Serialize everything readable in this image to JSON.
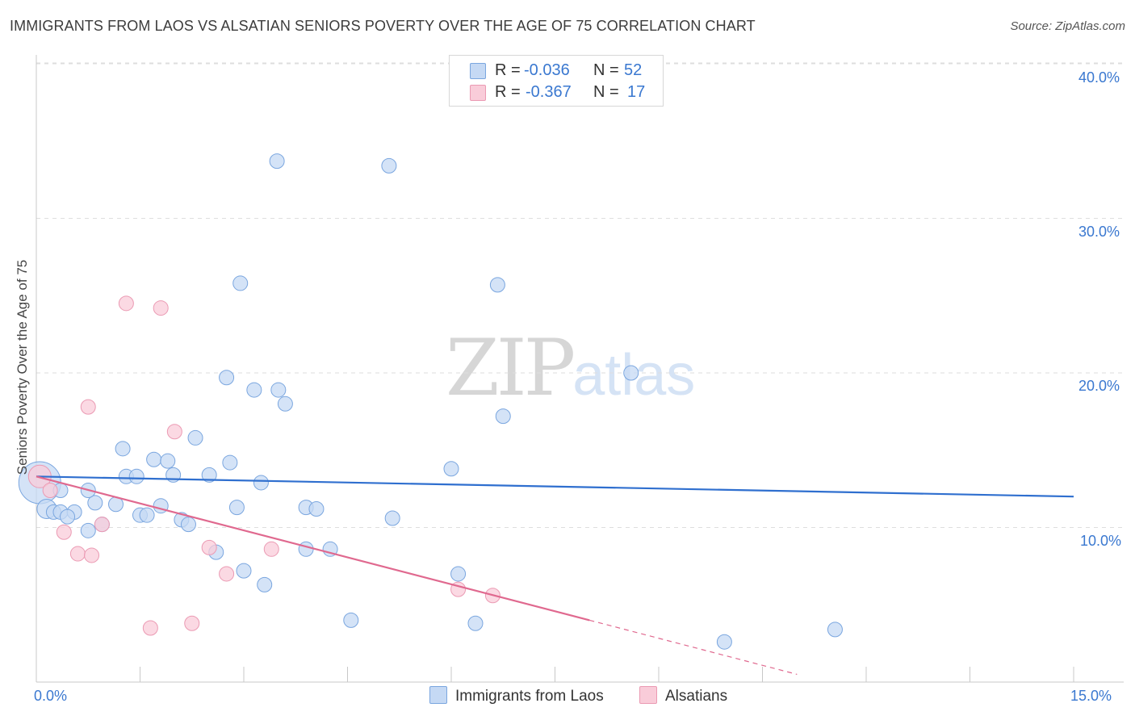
{
  "title": "IMMIGRANTS FROM LAOS VS ALSATIAN SENIORS POVERTY OVER THE AGE OF 75 CORRELATION CHART",
  "source": "Source: ZipAtlas.com",
  "watermark": {
    "zip": "ZIP",
    "atlas": "atlas"
  },
  "legend": {
    "series1": {
      "r_label": "R =",
      "r_value": "-0.036",
      "n_label": "N =",
      "n_value": "52"
    },
    "series2": {
      "r_label": "R =",
      "r_value": "-0.367",
      "n_label": "N =",
      "n_value": "17"
    }
  },
  "colors": {
    "blue_fill": "#c5d9f4",
    "blue_stroke": "#7aa6df",
    "blue_line": "#2f6fcf",
    "pink_fill": "#f9ccd9",
    "pink_stroke": "#eb9ab3",
    "pink_line": "#e0698f",
    "grid": "#dedede",
    "tick_text": "#3a78d0"
  },
  "chart_data": {
    "type": "scatter",
    "title": "IMMIGRANTS FROM LAOS VS ALSATIAN SENIORS POVERTY OVER THE AGE OF 75 CORRELATION CHART",
    "xlabel": "",
    "ylabel": "Seniors Poverty Over the Age of 75",
    "xlim": [
      0,
      15
    ],
    "ylim": [
      0,
      40
    ],
    "x_tick_labels": [
      "0.0%",
      "15.0%"
    ],
    "y_ticks": [
      10,
      20,
      30,
      40
    ],
    "y_tick_labels": [
      "10.0%",
      "20.0%",
      "30.0%",
      "40.0%"
    ],
    "grid": true,
    "series": [
      {
        "name": "Immigrants from Laos",
        "color": "#7aa6df",
        "trend": {
          "x0": 0,
          "y0": 13.3,
          "x1": 15,
          "y1": 12.0,
          "dashed_to": null
        },
        "points": [
          [
            0.05,
            12.9,
            26
          ],
          [
            0.15,
            11.2,
            12
          ],
          [
            0.25,
            11.0,
            9
          ],
          [
            0.35,
            11.0,
            9
          ],
          [
            0.55,
            11.0,
            9
          ],
          [
            0.45,
            10.7,
            9
          ],
          [
            0.75,
            9.8,
            9
          ],
          [
            0.85,
            11.6,
            9
          ],
          [
            0.95,
            10.2,
            9
          ],
          [
            1.15,
            11.5,
            9
          ],
          [
            0.75,
            12.4,
            9
          ],
          [
            1.3,
            13.3,
            9
          ],
          [
            1.45,
            13.3,
            9
          ],
          [
            1.25,
            15.1,
            9
          ],
          [
            1.5,
            10.8,
            9
          ],
          [
            1.6,
            10.8,
            9
          ],
          [
            1.7,
            14.4,
            9
          ],
          [
            1.8,
            11.4,
            9
          ],
          [
            1.9,
            14.3,
            9
          ],
          [
            1.98,
            13.4,
            9
          ],
          [
            2.1,
            10.5,
            9
          ],
          [
            2.2,
            10.2,
            9
          ],
          [
            2.3,
            15.8,
            9
          ],
          [
            2.5,
            13.4,
            9
          ],
          [
            2.6,
            8.4,
            9
          ],
          [
            2.8,
            14.2,
            9
          ],
          [
            2.75,
            19.7,
            9
          ],
          [
            2.9,
            11.3,
            9
          ],
          [
            2.95,
            25.8,
            9
          ],
          [
            3.0,
            7.2,
            9
          ],
          [
            3.15,
            18.9,
            9
          ],
          [
            3.25,
            12.9,
            9
          ],
          [
            3.3,
            6.3,
            9
          ],
          [
            3.48,
            33.7,
            9
          ],
          [
            3.5,
            18.9,
            9
          ],
          [
            3.6,
            18.0,
            9
          ],
          [
            3.9,
            8.6,
            9
          ],
          [
            3.9,
            11.3,
            9
          ],
          [
            4.05,
            11.2,
            9
          ],
          [
            4.25,
            8.6,
            9
          ],
          [
            4.55,
            4.0,
            9
          ],
          [
            5.1,
            33.4,
            9
          ],
          [
            5.15,
            10.6,
            9
          ],
          [
            6.0,
            13.8,
            9
          ],
          [
            6.1,
            7.0,
            9
          ],
          [
            6.35,
            3.8,
            9
          ],
          [
            6.67,
            25.7,
            9
          ],
          [
            6.75,
            17.2,
            9
          ],
          [
            8.6,
            20.0,
            9
          ],
          [
            9.95,
            2.6,
            9
          ],
          [
            11.55,
            3.4,
            9
          ],
          [
            0.35,
            12.4,
            9
          ]
        ]
      },
      {
        "name": "Alsatians",
        "color": "#eb9ab3",
        "trend": {
          "x0": 0,
          "y0": 13.3,
          "x1": 8.0,
          "y1": 4.0,
          "dashed_to": [
            11.0,
            0.5
          ]
        },
        "points": [
          [
            0.05,
            13.3,
            14
          ],
          [
            0.2,
            12.4,
            9
          ],
          [
            0.4,
            9.7,
            9
          ],
          [
            0.6,
            8.3,
            9
          ],
          [
            0.75,
            17.8,
            9
          ],
          [
            0.8,
            8.2,
            9
          ],
          [
            0.95,
            10.2,
            9
          ],
          [
            1.3,
            24.5,
            9
          ],
          [
            1.65,
            3.5,
            9
          ],
          [
            1.8,
            24.2,
            9
          ],
          [
            2.0,
            16.2,
            9
          ],
          [
            2.25,
            3.8,
            9
          ],
          [
            2.5,
            8.7,
            9
          ],
          [
            2.75,
            7.0,
            9
          ],
          [
            3.4,
            8.6,
            9
          ],
          [
            6.1,
            6.0,
            9
          ],
          [
            6.6,
            5.6,
            9
          ]
        ]
      }
    ]
  },
  "legend_bottom": {
    "series1": "Immigrants from Laos",
    "series2": "Alsatians"
  }
}
